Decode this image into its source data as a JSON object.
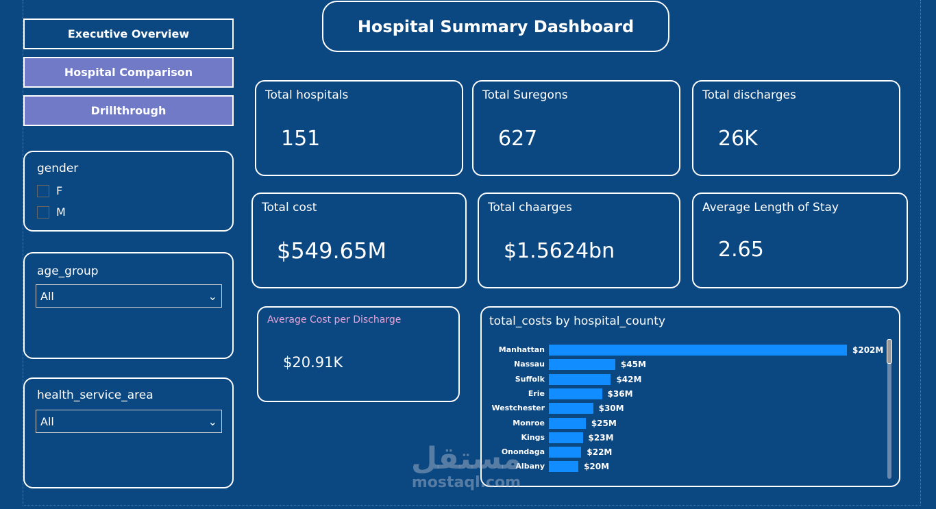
{
  "title": "Hospital Summary Dashboard",
  "nav": [
    {
      "label": "Executive Overview"
    },
    {
      "label": "Hospital Comparison"
    },
    {
      "label": "Drillthrough"
    }
  ],
  "filters": {
    "gender": {
      "label": "gender",
      "options": [
        "F",
        "M"
      ]
    },
    "age_group": {
      "label": "age_group",
      "value": "All"
    },
    "health_service_area": {
      "label": "health_service_area",
      "value": "All"
    }
  },
  "kpis": {
    "hospitals": {
      "label": "Total hospitals",
      "value": "151"
    },
    "surgeons": {
      "label": "Total Suregons",
      "value": "627"
    },
    "discharges": {
      "label": "Total discharges",
      "value": "26K"
    },
    "cost": {
      "label": "Total cost",
      "value": "$549.65M"
    },
    "charges": {
      "label": "Total chaarges",
      "value": "$1.5624bn"
    },
    "los": {
      "label": "Average Length of Stay",
      "value": "2.65"
    },
    "avg_cost": {
      "label": "Average Cost per Discharge",
      "value": "$20.91K",
      "label_color": "#e8a6d8"
    }
  },
  "chart_data": {
    "type": "bar",
    "orientation": "horizontal",
    "title": "total_costs by hospital_county",
    "categories": [
      "Manhattan",
      "Nassau",
      "Suffolk",
      "Erie",
      "Westchester",
      "Monroe",
      "Kings",
      "Onondaga",
      "Albany"
    ],
    "values": [
      202,
      45,
      42,
      36,
      30,
      25,
      23,
      22,
      20
    ],
    "data_labels": [
      "$202M",
      "$45M",
      "$42M",
      "$36M",
      "$30M",
      "$25M",
      "$23M",
      "$22M",
      "$20M"
    ],
    "unit": "$M",
    "bar_color": "#118dff"
  },
  "watermark": {
    "arabic": "مستقل",
    "latin": "mostaql.com"
  },
  "colors": {
    "background": "#0b4780",
    "nav_active": "#717ac6"
  }
}
